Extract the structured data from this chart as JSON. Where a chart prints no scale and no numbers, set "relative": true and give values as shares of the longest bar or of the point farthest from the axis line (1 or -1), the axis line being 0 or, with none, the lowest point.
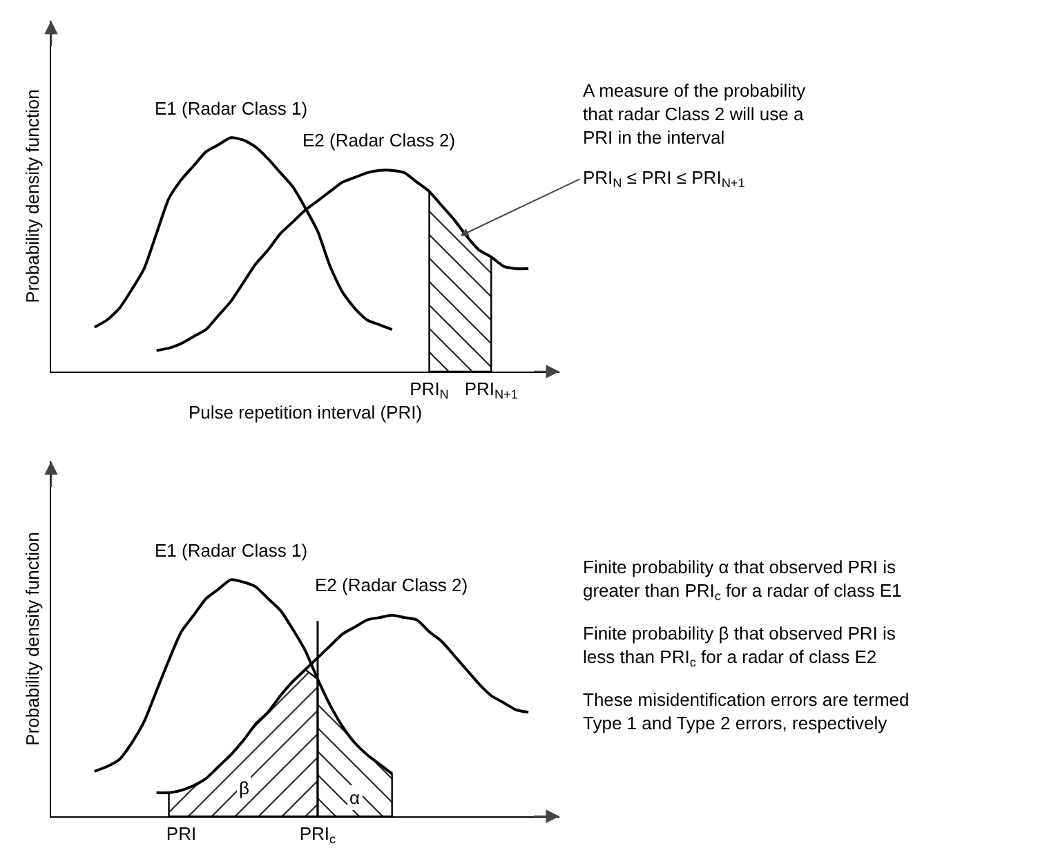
{
  "chart_data": [
    {
      "type": "line",
      "relative": true,
      "ylabel": "Probability density function",
      "xlabel": "Pulse repetition interval (PRI)",
      "grid": false,
      "legend": false,
      "marker": "none",
      "line_style": "solid",
      "categories": [
        null,
        null,
        null,
        null,
        null,
        null,
        null,
        null,
        null,
        null,
        null,
        null,
        null,
        null,
        null,
        null,
        null,
        null,
        null,
        null,
        null,
        null,
        null,
        null,
        null,
        null,
        null,
        null,
        null,
        null,
        "PRI$_{N}$",
        null,
        null,
        null,
        null,
        "PRI$_{N+1}$",
        null,
        null,
        null,
        null,
        null
      ],
      "series": [
        {
          "name": "E1 (Radar Class 1)",
          "color": "#000000",
          "values": [
            null,
            null,
            null,
            0.19,
            0.22,
            0.27,
            0.35,
            0.44,
            0.59,
            0.74,
            0.82,
            0.88,
            0.94,
            0.97,
            1,
            0.99,
            0.96,
            0.91,
            0.85,
            0.79,
            0.7,
            0.6,
            0.45,
            0.34,
            0.27,
            0.22,
            0.2,
            0.18,
            null,
            null,
            null,
            null,
            null,
            null,
            null,
            null,
            null,
            null,
            null,
            null,
            null
          ]
        },
        {
          "name": "E2 (Radar Class 2)",
          "color": "#000000",
          "values": [
            null,
            null,
            null,
            null,
            null,
            null,
            null,
            null,
            0.09,
            0.1,
            0.12,
            0.15,
            0.18,
            0.24,
            0.3,
            0.38,
            0.46,
            0.52,
            0.59,
            0.64,
            0.69,
            0.73,
            0.77,
            0.81,
            0.83,
            0.85,
            0.86,
            0.86,
            0.85,
            0.81,
            0.77,
            0.71,
            0.65,
            0.58,
            0.52,
            0.49,
            0.45,
            0.44,
            0.44,
            null,
            null
          ]
        },
        {
          "type": "area",
          "color": "#000000",
          "values": [
            null,
            null,
            null,
            null,
            null,
            null,
            null,
            null,
            null,
            null,
            null,
            null,
            null,
            null,
            null,
            null,
            null,
            null,
            null,
            null,
            null,
            null,
            null,
            null,
            null,
            null,
            null,
            null,
            null,
            null,
            0.77,
            0.71,
            0.65,
            0.58,
            0.52,
            0.49,
            null,
            null,
            null,
            null,
            null
          ]
        }
      ],
      "annotations": [
        "A measure of the probability that radar Class 2 will use a PRI in the interval",
        "PRI$_{N}$ ≤ PRI ≤ PRI$_{N+1}$"
      ]
    },
    {
      "type": "line",
      "relative": true,
      "ylabel": "Probability density function",
      "grid": false,
      "legend": false,
      "marker": "none",
      "line_style": "solid",
      "categories": [
        null,
        null,
        null,
        null,
        null,
        null,
        null,
        null,
        null,
        null,
        "PRI",
        null,
        null,
        null,
        null,
        null,
        null,
        null,
        null,
        null,
        null,
        "PRI$_{c}$",
        null,
        null,
        null,
        null,
        null,
        null,
        null,
        null,
        null,
        null,
        null,
        null,
        null,
        null,
        null,
        null,
        null,
        null,
        null
      ],
      "series": [
        {
          "name": "E1 (Radar Class 1)",
          "color": "#000000",
          "values": [
            null,
            null,
            null,
            0.19,
            0.21,
            0.24,
            0.31,
            0.4,
            0.53,
            0.66,
            0.78,
            0.85,
            0.92,
            0.96,
            1,
            0.99,
            0.97,
            0.92,
            0.87,
            0.79,
            0.7,
            0.58,
            0.47,
            0.38,
            0.31,
            0.26,
            0.22,
            0.18,
            null,
            null,
            null,
            null,
            null,
            null,
            null,
            null,
            null,
            null,
            null,
            null,
            null
          ]
        },
        {
          "name": "E2 (Radar Class 2)",
          "color": "#000000",
          "values": [
            null,
            null,
            null,
            null,
            null,
            null,
            null,
            null,
            0.1,
            0.1,
            0.11,
            0.13,
            0.16,
            0.21,
            0.26,
            0.32,
            0.39,
            0.44,
            0.51,
            0.57,
            0.62,
            0.67,
            0.72,
            0.77,
            0.8,
            0.83,
            0.84,
            0.85,
            0.84,
            0.83,
            0.78,
            0.74,
            0.68,
            0.62,
            0.56,
            0.51,
            0.48,
            0.45,
            0.44,
            null,
            null
          ]
        },
        {
          "type": "area",
          "color": "#000000",
          "values": [
            null,
            null,
            null,
            null,
            null,
            null,
            null,
            null,
            null,
            0.1,
            0.11,
            0.13,
            0.16,
            0.21,
            0.26,
            0.32,
            0.39,
            0.44,
            0.51,
            0.57,
            0.62,
            0.58,
            null,
            null,
            null,
            null,
            null,
            null,
            null,
            null,
            null,
            null,
            null,
            null,
            null,
            null,
            null,
            null,
            null,
            null,
            null
          ]
        },
        {
          "type": "area",
          "color": "#000000",
          "values": [
            null,
            null,
            null,
            null,
            null,
            null,
            null,
            null,
            null,
            null,
            null,
            null,
            null,
            null,
            null,
            null,
            null,
            null,
            null,
            null,
            null,
            0.58,
            0.47,
            0.38,
            0.31,
            0.26,
            0.22,
            0.18,
            null,
            null,
            null,
            null,
            null,
            null,
            null,
            null,
            null,
            null,
            null,
            null,
            null
          ]
        }
      ],
      "ref_lines": [
        {
          "axis": "x",
          "value": "PRI$_{c}$",
          "color": "#000000"
        }
      ],
      "annotations": [
        "Finite probability α that observed PRI is greater than PRI$_{c}$ for a radar of class E1",
        "Finite probability β that observed PRI is less than PRI$_{c}$ for a radar of class E2",
        "These misidentification errors are termed Type 1 and Type 2 errors, respectively",
        {
          "text": "β",
          "y": 0.12
        },
        {
          "text": "α",
          "y": 0.08
        }
      ]
    }
  ]
}
